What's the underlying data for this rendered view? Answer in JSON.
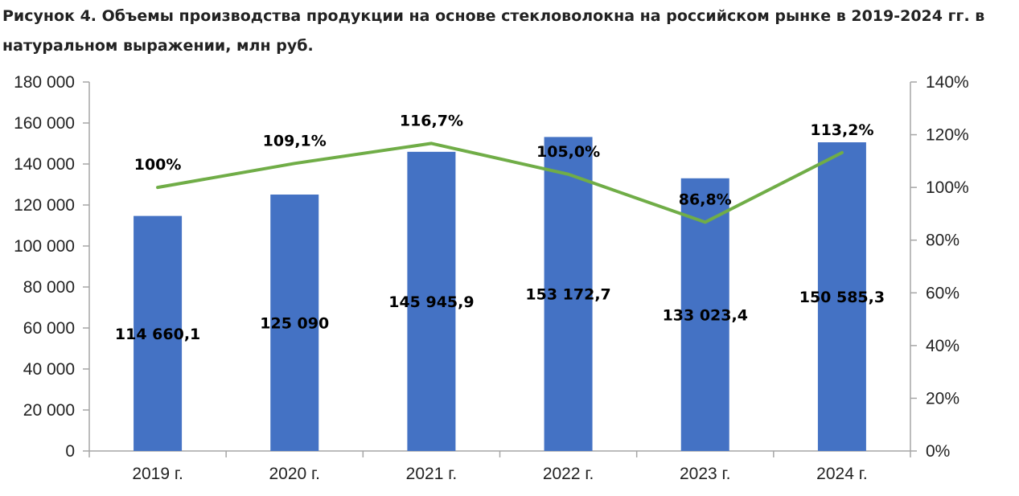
{
  "chart_data": {
    "type": "bar",
    "title": "Рисунок 4. Объемы производства продукции на основе стекловолокна на российском рынке в 2019-2024 гг. в натуральном выражении, млн руб.",
    "categories": [
      "2019 г.",
      "2020 г.",
      "2021 г.",
      "2022 г.",
      "2023 г.",
      "2024 г."
    ],
    "series": [
      {
        "type": "bar",
        "axis": "left",
        "color": "#4472C4",
        "values": [
          114660.1,
          125090,
          145945.9,
          153172.7,
          133023.4,
          150585.3
        ],
        "labels": [
          "114 660,1",
          "125 090",
          "145 945,9",
          "153 172,7",
          "133 023,4",
          "150 585,3"
        ]
      },
      {
        "type": "line",
        "axis": "right",
        "color": "#70AD47",
        "values": [
          100,
          109.1,
          116.7,
          105.0,
          86.8,
          113.2
        ],
        "labels": [
          "100%",
          "109,1%",
          "116,7%",
          "105,0%",
          "86,8%",
          "113,2%"
        ]
      }
    ],
    "y_left": {
      "ylim": [
        0,
        180000
      ],
      "ticks": [
        0,
        20000,
        40000,
        60000,
        80000,
        100000,
        120000,
        140000,
        160000,
        180000
      ],
      "tick_labels": [
        "0",
        "20 000",
        "40 000",
        "60 000",
        "80 000",
        "100 000",
        "120 000",
        "140 000",
        "160 000",
        "180 000"
      ]
    },
    "y_right": {
      "ylim": [
        0,
        140
      ],
      "ticks": [
        0,
        20,
        40,
        60,
        80,
        100,
        120,
        140
      ],
      "tick_labels": [
        "0%",
        "20%",
        "40%",
        "60%",
        "80%",
        "100%",
        "120%",
        "140%"
      ]
    },
    "grid": false,
    "legend": "none"
  }
}
